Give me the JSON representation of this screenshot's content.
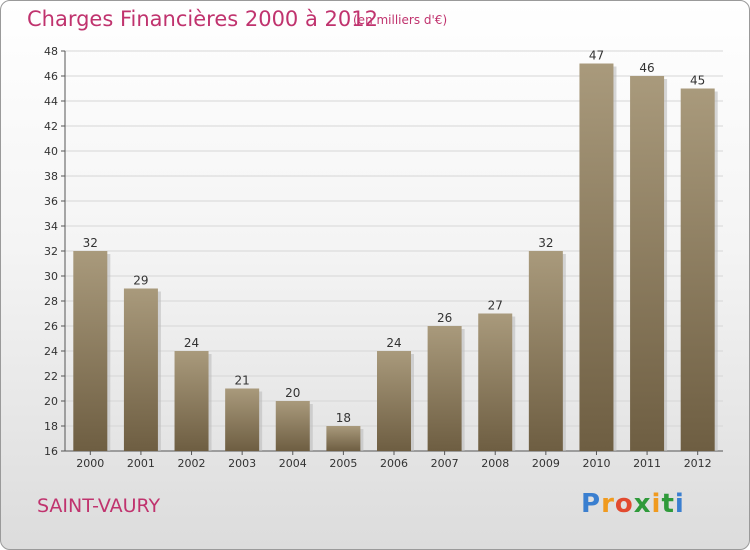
{
  "title": "Charges Financières 2000 à 2012",
  "subtitle": "(en milliers d'€)",
  "place": "SAINT-VAURY",
  "logo": {
    "letters": [
      "P",
      "r",
      "o",
      "x",
      "i",
      "t",
      "i"
    ],
    "colors": [
      "#3a7fd0",
      "#f09a1e",
      "#e24a2f",
      "#2f9a3a",
      "#f09a1e",
      "#2f9a3a",
      "#3a7fd0"
    ]
  },
  "colors": {
    "bar_light": "#a99a7c",
    "bar_dark": "#6e5e42",
    "accent": "#c0336e"
  },
  "chart_data": {
    "type": "bar",
    "categories": [
      "2000",
      "2001",
      "2002",
      "2003",
      "2004",
      "2005",
      "2006",
      "2007",
      "2008",
      "2009",
      "2010",
      "2011",
      "2012"
    ],
    "values": [
      32,
      29,
      24,
      21,
      20,
      18,
      24,
      26,
      27,
      32,
      47,
      46,
      45
    ],
    "data_labels": [
      "32",
      "29",
      "24",
      "21",
      "20",
      "18",
      "24",
      "26",
      "27",
      "32",
      "47",
      "46",
      "45"
    ],
    "title": "Charges Financières 2000 à 2012",
    "subtitle": "(en milliers d'€)",
    "xlabel": "",
    "ylabel": "",
    "ylim": [
      16,
      48
    ],
    "yticks": [
      "16",
      "18",
      "20",
      "22",
      "24",
      "26",
      "28",
      "30",
      "32",
      "34",
      "36",
      "38",
      "40",
      "42",
      "44",
      "46",
      "48"
    ],
    "grid": true
  }
}
